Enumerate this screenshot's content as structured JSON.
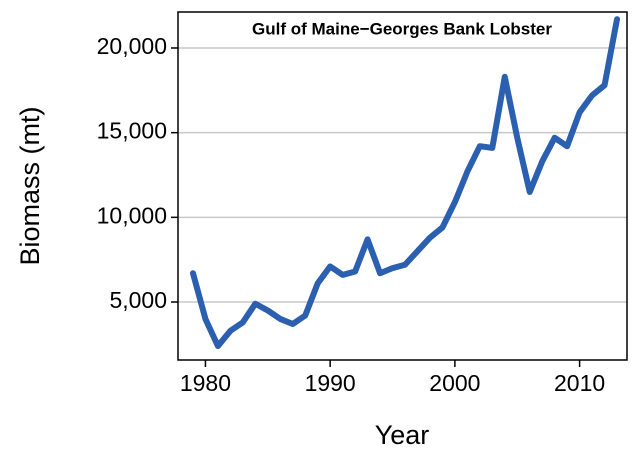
{
  "chart_data": {
    "type": "line",
    "title": "Gulf of Maine−Georges Bank Lobster",
    "x_label": "Year",
    "y_label": "Biomass (mt)",
    "x": [
      1979,
      1980,
      1981,
      1982,
      1983,
      1984,
      1985,
      1986,
      1987,
      1988,
      1989,
      1990,
      1991,
      1992,
      1993,
      1994,
      1995,
      1996,
      1997,
      1998,
      1999,
      2000,
      2001,
      2002,
      2003,
      2004,
      2005,
      2006,
      2007,
      2008,
      2009,
      2010,
      2011,
      2012,
      2013
    ],
    "series": [
      {
        "name": "Biomass",
        "color": "#2b5fb0",
        "values": [
          6700,
          4000,
          2400,
          3300,
          3800,
          4900,
          4500,
          4000,
          3700,
          4200,
          6100,
          7100,
          6600,
          6800,
          8700,
          6700,
          7000,
          7200,
          8000,
          8800,
          9400,
          10900,
          12700,
          14200,
          14100,
          18300,
          14700,
          11500,
          13300,
          14700,
          14200,
          16200,
          17200,
          17800,
          21700
        ]
      }
    ],
    "xlim": [
      1977.8,
      2013.8
    ],
    "xticks": [
      1980,
      1990,
      2000,
      2010
    ],
    "ylim": [
      1576,
      22125
    ],
    "yticks": [
      {
        "value": 5000,
        "label": "5,000"
      },
      {
        "value": 10000,
        "label": "10,000"
      },
      {
        "value": 15000,
        "label": "15,000"
      },
      {
        "value": 20000,
        "label": "20,000"
      }
    ],
    "grid": true
  }
}
